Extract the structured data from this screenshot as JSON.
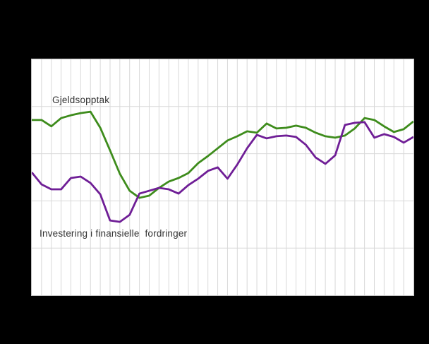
{
  "figure": {
    "background_color": "#000000",
    "plot_background_color": "#ffffff",
    "gridline_color": "#d8d8d8",
    "border_color": "#c0c0c0",
    "label_text_color": "#333333"
  },
  "labels": {
    "green_series": "Gjeldsopptak",
    "purple_series": "Investering i finansielle  fordringer"
  },
  "chart_data": {
    "type": "line",
    "title": "",
    "xlabel": "",
    "ylabel": "",
    "axis_tick_labels_visible": false,
    "y_scale_note": "values are percent of plot height from bottom (axis labels not visible in image)",
    "ylim": [
      0,
      100
    ],
    "legend_position": "inline-text-labels",
    "grid": {
      "vertical_line_count": 38,
      "horizontal_line_levels": [
        20,
        40,
        60,
        80
      ]
    },
    "x_index": [
      1,
      2,
      3,
      4,
      5,
      6,
      7,
      8,
      9,
      10,
      11,
      12,
      13,
      14,
      15,
      16,
      17,
      18,
      19,
      20,
      21,
      22,
      23,
      24,
      25,
      26,
      27,
      28,
      29,
      30,
      31,
      32,
      33,
      34,
      35,
      36,
      37,
      38,
      39,
      40
    ],
    "series": [
      {
        "name": "Gjeldsopptak",
        "color": "#3e8c1c",
        "line_width": 2.8,
        "values": [
          74.3,
          74.3,
          71.6,
          75.1,
          76.3,
          77.2,
          77.8,
          71.0,
          61.4,
          51.5,
          44.3,
          41.3,
          42.2,
          45.5,
          48.2,
          49.7,
          51.8,
          56.0,
          59.0,
          62.3,
          65.6,
          67.4,
          69.5,
          68.9,
          72.8,
          70.7,
          71.0,
          71.9,
          71.0,
          68.9,
          67.4,
          66.8,
          67.7,
          70.7,
          75.1,
          74.3,
          71.6,
          69.2,
          70.4,
          73.7
        ]
      },
      {
        "name": "Investering i finansielle  fordringer",
        "color": "#6f1e96",
        "line_width": 2.8,
        "values": [
          52.1,
          47.0,
          44.9,
          44.9,
          49.7,
          50.3,
          47.6,
          42.8,
          31.7,
          31.1,
          34.1,
          43.1,
          44.3,
          45.5,
          44.9,
          43.1,
          46.7,
          49.4,
          52.7,
          54.2,
          49.4,
          55.4,
          62.3,
          68.0,
          66.5,
          67.4,
          67.7,
          67.1,
          63.8,
          58.4,
          55.7,
          59.3,
          72.2,
          73.1,
          73.4,
          66.8,
          68.3,
          67.1,
          64.7,
          67.1
        ]
      }
    ]
  }
}
